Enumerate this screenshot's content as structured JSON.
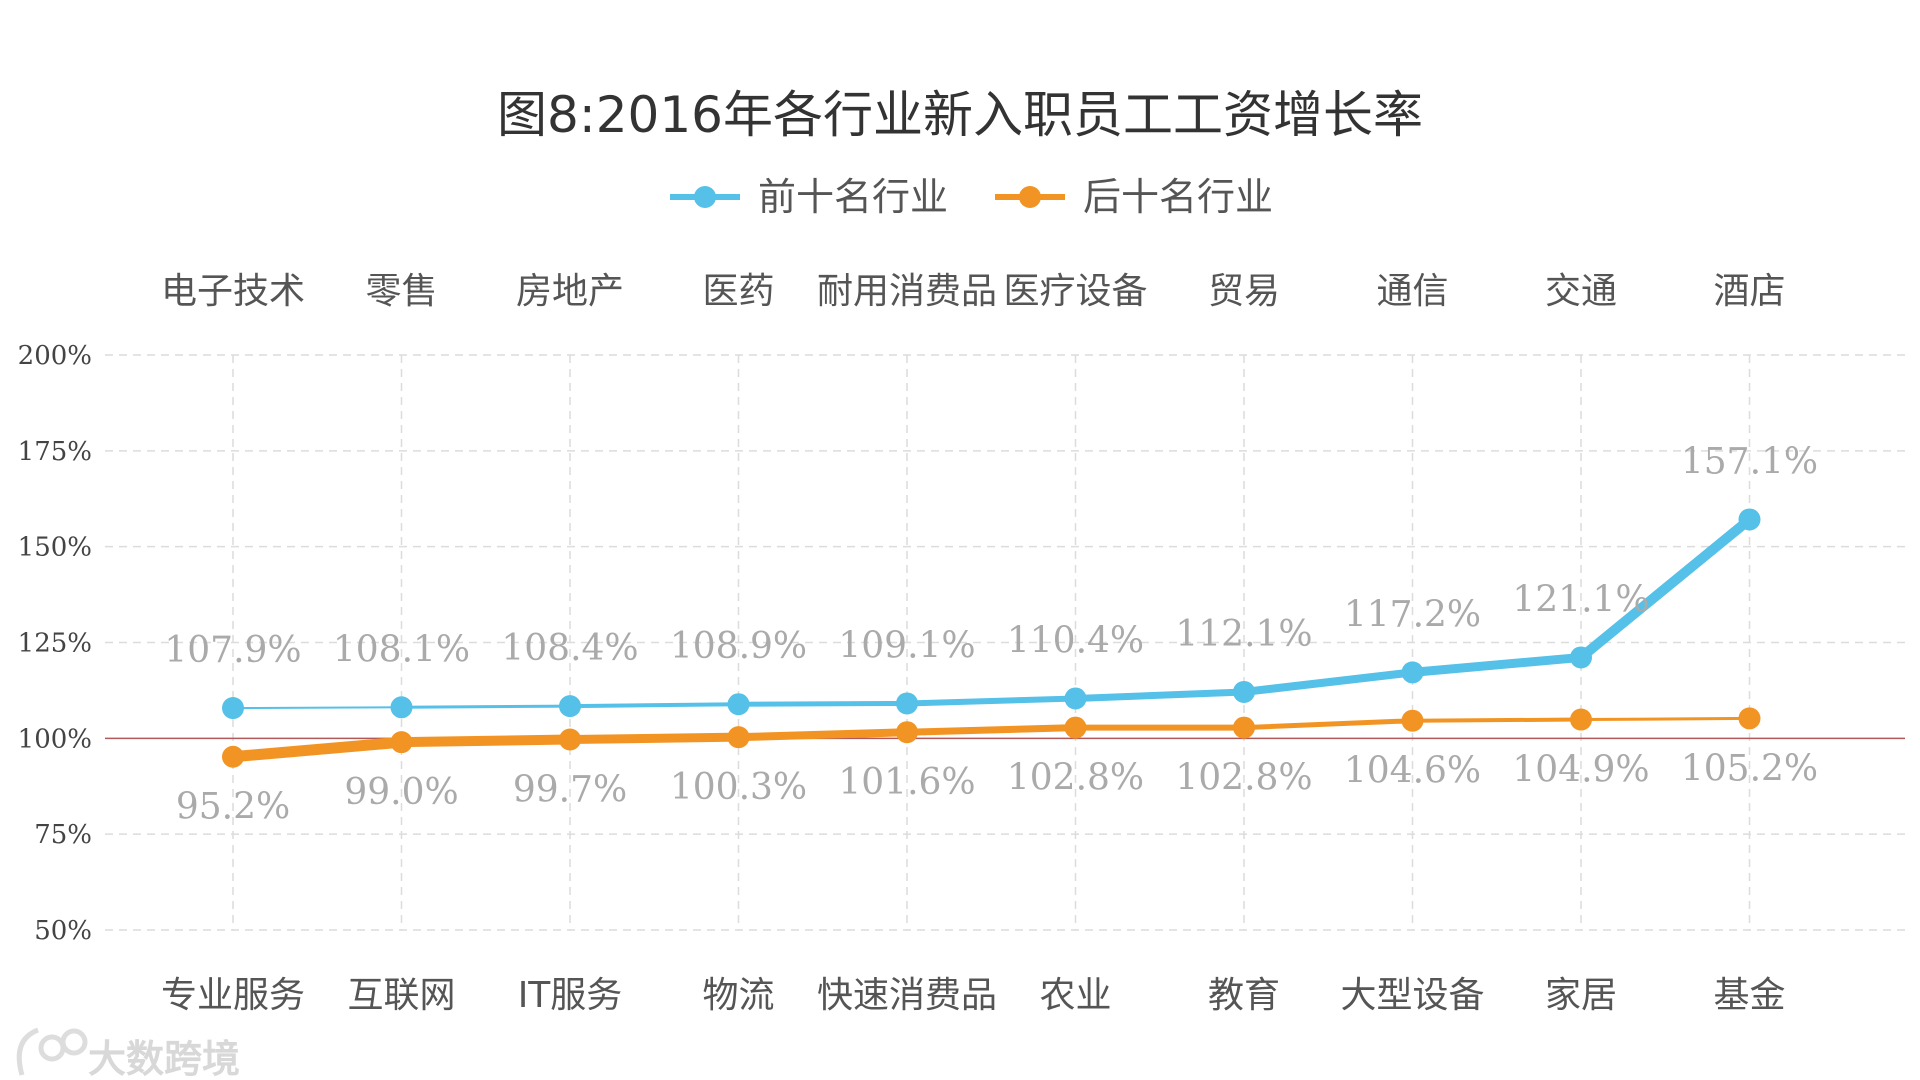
{
  "chart_data": {
    "type": "line",
    "title": "图8:2016年各行业新入职员工工资增长率",
    "ylim": [
      50,
      200
    ],
    "yticks": [
      50,
      75,
      100,
      125,
      150,
      175,
      200
    ],
    "ytick_labels": [
      "50%",
      "75%",
      "100%",
      "125%",
      "150%",
      "175%",
      "200%"
    ],
    "reference_line": 100,
    "grid": true,
    "legend_position": "top-center",
    "series": [
      {
        "name": "前十名行业",
        "color": "#55C0E8",
        "categories": [
          "电子技术",
          "零售",
          "房地产",
          "医药",
          "耐用消费品",
          "医疗设备",
          "贸易",
          "通信",
          "交通",
          "酒店"
        ],
        "values": [
          107.9,
          108.1,
          108.4,
          108.9,
          109.1,
          110.4,
          112.1,
          117.2,
          121.1,
          157.1
        ],
        "labels": [
          "107.9%",
          "108.1%",
          "108.4%",
          "108.9%",
          "109.1%",
          "110.4%",
          "112.1%",
          "117.2%",
          "121.1%",
          "157.1%"
        ]
      },
      {
        "name": "后十名行业",
        "color": "#F29423",
        "categories": [
          "专业服务",
          "互联网",
          "IT服务",
          "物流",
          "快速消费品",
          "农业",
          "教育",
          "大型设备",
          "家居",
          "基金"
        ],
        "values": [
          95.2,
          99.0,
          99.7,
          100.3,
          101.6,
          102.8,
          102.8,
          104.6,
          104.9,
          105.2
        ],
        "labels": [
          "95.2%",
          "99.0%",
          "99.7%",
          "100.3%",
          "101.6%",
          "102.8%",
          "102.8%",
          "104.6%",
          "104.9%",
          "105.2%"
        ]
      }
    ]
  },
  "watermark": {
    "text": "大数跨境"
  }
}
